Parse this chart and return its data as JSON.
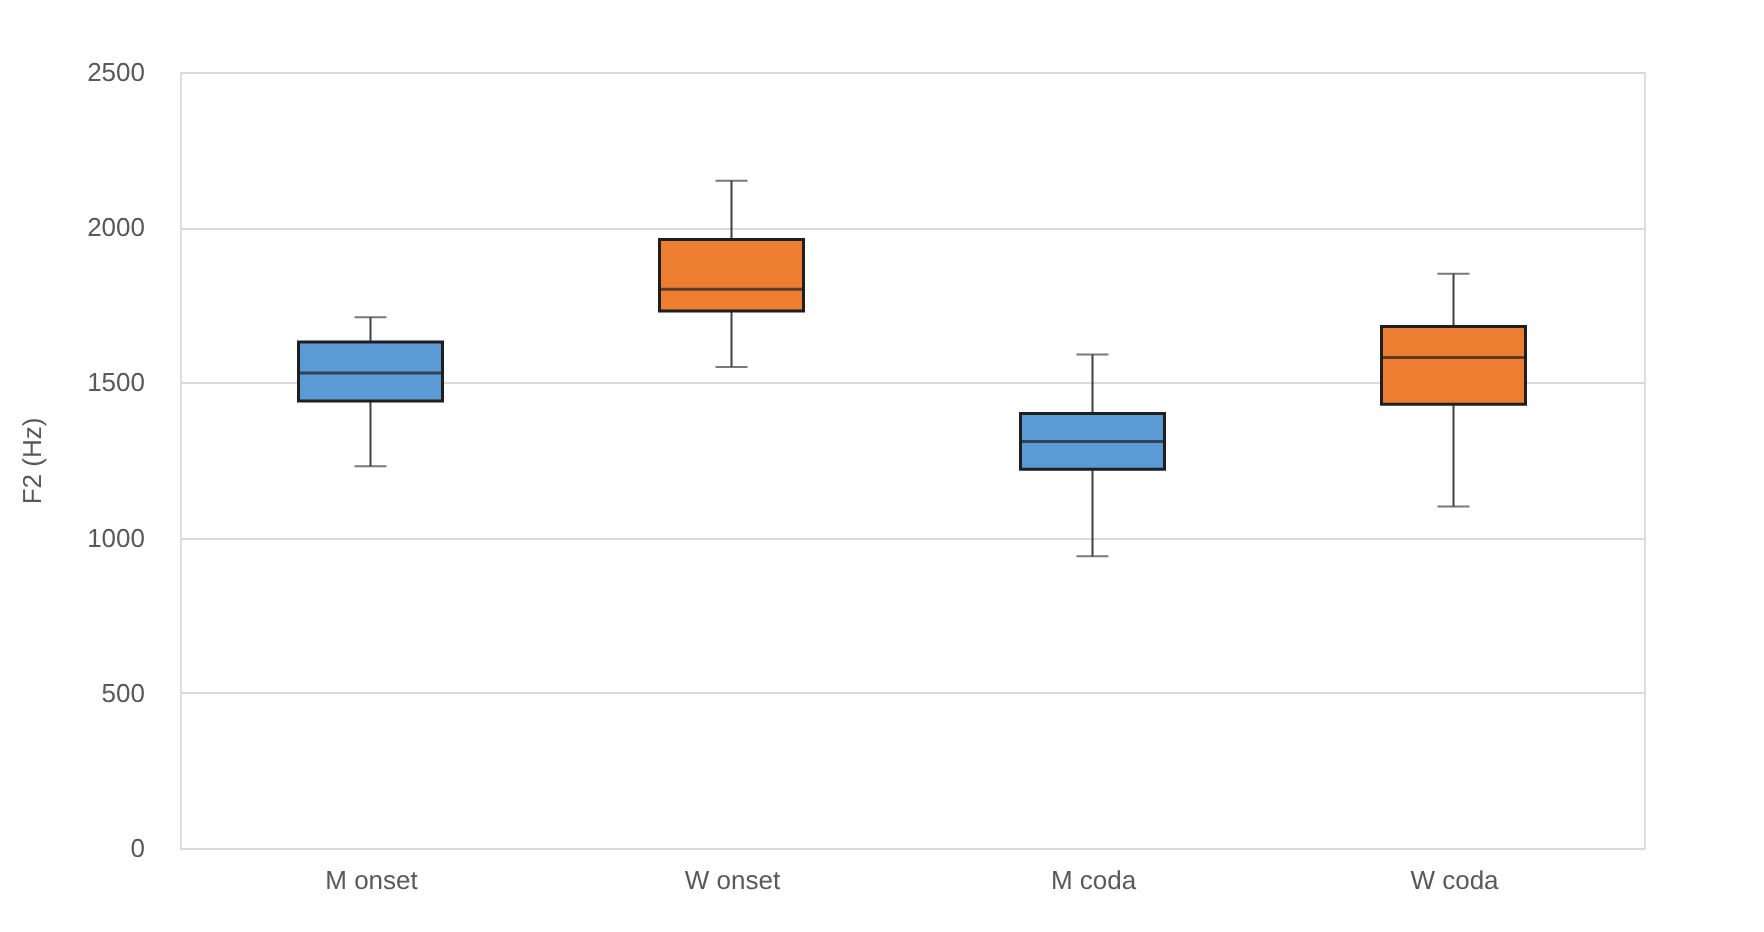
{
  "chart_data": {
    "type": "box",
    "ylabel": "F2 (Hz)",
    "categories": [
      "M onset",
      "W onset",
      "M coda",
      "W coda"
    ],
    "boxes": [
      {
        "low": 1230,
        "q1": 1440,
        "median": 1530,
        "q3": 1630,
        "high": 1710
      },
      {
        "low": 1550,
        "q1": 1730,
        "median": 1800,
        "q3": 1960,
        "high": 2150
      },
      {
        "low": 940,
        "q1": 1220,
        "median": 1310,
        "q3": 1400,
        "high": 1590
      },
      {
        "low": 1100,
        "q1": 1430,
        "median": 1580,
        "q3": 1680,
        "high": 1850
      }
    ],
    "colors": [
      "#5b9bd5",
      "#ed7d31",
      "#5b9bd5",
      "#ed7d31"
    ],
    "ylim": [
      0,
      2500
    ],
    "yticks": [
      0,
      500,
      1000,
      1500,
      2000,
      2500
    ],
    "grid": "y"
  }
}
